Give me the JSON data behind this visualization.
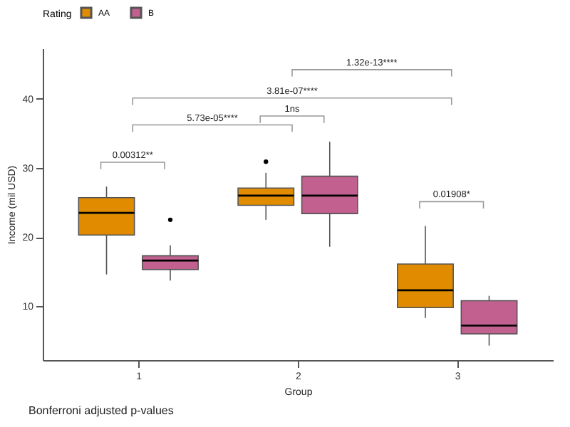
{
  "chart_data": {
    "type": "box",
    "xlabel": "Group",
    "ylabel": "Income (mil USD)",
    "legend_title": "Rating",
    "legend": "top",
    "categories": [
      "1",
      "2",
      "3"
    ],
    "ylim": [
      2.2,
      47.3
    ],
    "yticks": [
      10,
      20,
      30,
      40
    ],
    "grid": false,
    "series": [
      {
        "name": "AA",
        "color": "#e08b00",
        "boxes": [
          {
            "low": 14.6,
            "q1": 20.3,
            "median": 23.5,
            "q3": 25.7,
            "high": 27.3
          },
          {
            "low": 22.5,
            "q1": 24.6,
            "median": 26.0,
            "q3": 27.1,
            "high": 29.3,
            "outliers": [
              30.9
            ]
          },
          {
            "low": 8.3,
            "q1": 9.8,
            "median": 12.3,
            "q3": 16.1,
            "high": 21.6
          }
        ]
      },
      {
        "name": "B",
        "color": "#c2608f",
        "boxes": [
          {
            "low": 13.7,
            "q1": 15.3,
            "median": 16.6,
            "q3": 17.3,
            "high": 18.8,
            "outliers": [
              22.5
            ]
          },
          {
            "low": 18.6,
            "q1": 23.4,
            "median": 26.0,
            "q3": 28.8,
            "high": 33.8
          },
          {
            "low": 4.3,
            "q1": 6.0,
            "median": 7.2,
            "q3": 10.8,
            "high": 11.5
          }
        ]
      }
    ],
    "annotations": [
      "0.00312**",
      "5.73e-05****",
      "1ns",
      "3.81e-07****",
      "1.32e-13****",
      "0.01908*",
      "Bonferroni adjusted p-values"
    ]
  }
}
